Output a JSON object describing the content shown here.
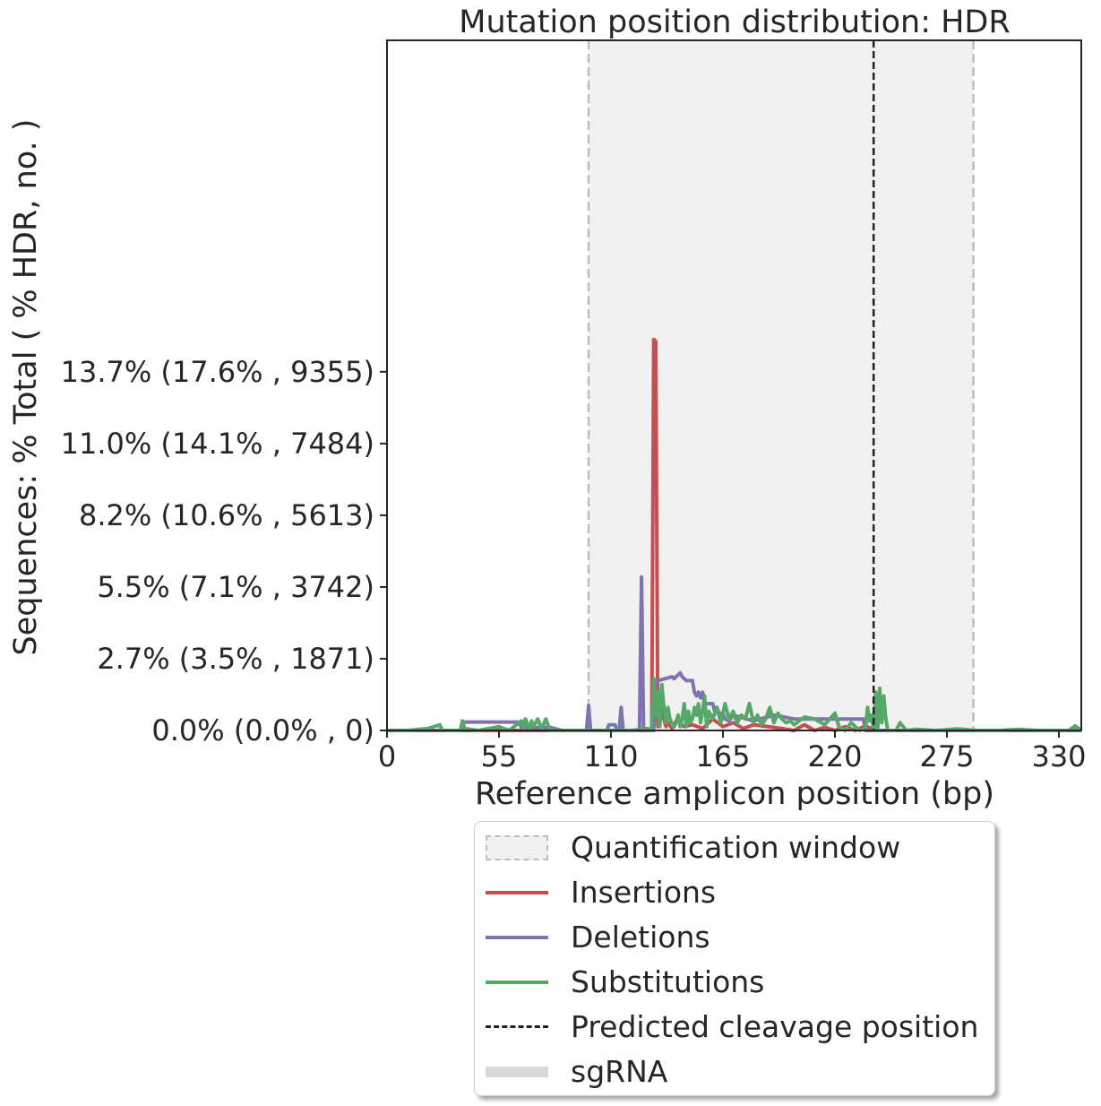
{
  "chart_data": {
    "type": "line",
    "title": "Mutation position distribution: HDR",
    "xlabel": "Reference amplicon position (bp)",
    "ylabel": "Sequences: % Total ( % HDR, no. )",
    "xlim": [
      0,
      341
    ],
    "ylim": [
      0,
      18000
    ],
    "x_ticks": [
      0,
      55,
      110,
      165,
      220,
      275,
      330
    ],
    "y_ticks": [
      {
        "value": 0,
        "label": "0.0% (0.0% , 0)"
      },
      {
        "value": 1871,
        "label": "2.7% (3.5% , 1871)"
      },
      {
        "value": 3742,
        "label": "5.5% (7.1% , 3742)"
      },
      {
        "value": 5613,
        "label": "8.2% (10.6% , 5613)"
      },
      {
        "value": 7484,
        "label": "11.0% (14.1% , 7484)"
      },
      {
        "value": 9355,
        "label": "13.7% (17.6% , 9355)"
      }
    ],
    "quantification_window": [
      99,
      288
    ],
    "predicted_cleavage_position": 239,
    "colors": {
      "insertions": "#c44e52",
      "deletions": "#8172b2",
      "substitutions": "#55a868",
      "window_fill": "#f1f1f1",
      "window_edge": "#bdbdbd",
      "cleavage": "#222222"
    },
    "series": [
      {
        "name": "Insertions",
        "color": "#c44e52",
        "x": [
          0,
          100,
          128,
          130,
          131,
          132,
          133,
          134,
          135,
          136,
          137,
          138,
          140,
          142,
          146,
          150,
          155,
          160,
          165,
          170,
          175,
          180,
          190,
          200,
          205,
          210,
          215,
          220,
          225,
          230,
          235,
          238,
          240,
          245,
          341
        ],
        "y": [
          0,
          0,
          0,
          0,
          10200,
          10150,
          100,
          200,
          600,
          300,
          100,
          200,
          50,
          250,
          100,
          150,
          50,
          300,
          100,
          200,
          50,
          150,
          80,
          0,
          150,
          0,
          80,
          0,
          100,
          0,
          120,
          50,
          0,
          0,
          0
        ]
      },
      {
        "name": "Deletions",
        "color": "#8172b2",
        "x": [
          0,
          36,
          38,
          64,
          65,
          66,
          80,
          86,
          98,
          99,
          100,
          101,
          108,
          109,
          112,
          113,
          114,
          115,
          116,
          117,
          118,
          124,
          125,
          126,
          130,
          131,
          132,
          133,
          140,
          141,
          142,
          144,
          145,
          146,
          147,
          150,
          151,
          152,
          153,
          154,
          155,
          156,
          160,
          161,
          162,
          163,
          165,
          166,
          168,
          170,
          180,
          190,
          200,
          210,
          220,
          230,
          234,
          235,
          238,
          240,
          341
        ],
        "y": [
          0,
          0,
          220,
          220,
          180,
          80,
          80,
          0,
          0,
          650,
          0,
          0,
          0,
          150,
          150,
          0,
          0,
          600,
          0,
          0,
          0,
          0,
          4000,
          0,
          0,
          0,
          1300,
          1300,
          1400,
          1350,
          1400,
          1500,
          1400,
          1350,
          1300,
          1300,
          1000,
          900,
          1000,
          850,
          1000,
          700,
          700,
          500,
          600,
          450,
          450,
          300,
          250,
          400,
          250,
          400,
          300,
          300,
          300,
          300,
          300,
          0,
          0,
          0,
          0
        ]
      },
      {
        "name": "Substitutions",
        "color": "#55a868",
        "x": [
          0,
          10,
          20,
          26,
          27,
          28,
          36,
          37,
          38,
          45,
          55,
          60,
          66,
          67,
          68,
          70,
          71,
          72,
          74,
          76,
          78,
          80,
          85,
          95,
          110,
          120,
          128,
          130,
          131,
          132,
          133,
          134,
          135,
          136,
          137,
          138,
          139,
          140,
          141,
          142,
          143,
          144,
          145,
          146,
          147,
          148,
          149,
          150,
          151,
          152,
          153,
          154,
          155,
          156,
          157,
          158,
          160,
          162,
          164,
          166,
          168,
          170,
          172,
          174,
          176,
          178,
          180,
          182,
          184,
          186,
          188,
          190,
          192,
          194,
          196,
          198,
          200,
          205,
          210,
          215,
          220,
          222,
          225,
          228,
          232,
          235,
          236,
          237,
          238,
          239,
          240,
          241,
          242,
          243,
          244,
          245,
          246,
          250,
          252,
          255,
          260,
          270,
          280,
          290,
          300,
          310,
          320,
          330,
          335,
          338,
          341
        ],
        "y": [
          0,
          0,
          50,
          150,
          0,
          0,
          0,
          250,
          50,
          0,
          100,
          0,
          250,
          50,
          300,
          50,
          250,
          100,
          300,
          50,
          300,
          0,
          0,
          0,
          0,
          0,
          50,
          0,
          1350,
          400,
          1000,
          100,
          1200,
          600,
          200,
          600,
          300,
          150,
          100,
          200,
          400,
          100,
          300,
          700,
          100,
          500,
          200,
          300,
          600,
          400,
          700,
          200,
          500,
          900,
          100,
          500,
          300,
          600,
          200,
          700,
          300,
          500,
          200,
          400,
          300,
          700,
          200,
          400,
          150,
          300,
          600,
          200,
          450,
          300,
          200,
          250,
          150,
          350,
          300,
          150,
          450,
          100,
          0,
          200,
          0,
          50,
          600,
          250,
          400,
          0,
          1000,
          0,
          1100,
          200,
          900,
          300,
          0,
          0,
          200,
          0,
          30,
          0,
          40,
          0,
          0,
          30,
          0,
          0,
          0,
          120,
          0
        ]
      }
    ],
    "legend": {
      "position": "below",
      "entries": [
        "Quantification window",
        "Insertions",
        "Deletions",
        "Substitutions",
        "Predicted cleavage position",
        "sgRNA"
      ]
    }
  }
}
